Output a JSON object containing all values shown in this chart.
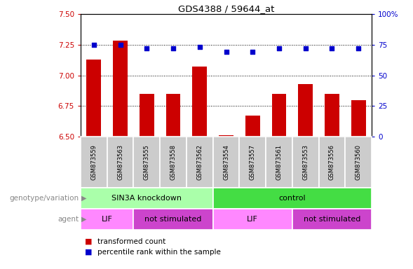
{
  "title": "GDS4388 / 59644_at",
  "samples": [
    "GSM873559",
    "GSM873563",
    "GSM873555",
    "GSM873558",
    "GSM873562",
    "GSM873554",
    "GSM873557",
    "GSM873561",
    "GSM873553",
    "GSM873556",
    "GSM873560"
  ],
  "bar_values": [
    7.13,
    7.28,
    6.85,
    6.85,
    7.07,
    6.51,
    6.67,
    6.85,
    6.93,
    6.85,
    6.8
  ],
  "dot_values": [
    75,
    75,
    72,
    72,
    73,
    69,
    69,
    72,
    72,
    72,
    72
  ],
  "ylim_left": [
    6.5,
    7.5
  ],
  "ylim_right": [
    0,
    100
  ],
  "yticks_left": [
    6.5,
    6.75,
    7.0,
    7.25,
    7.5
  ],
  "yticks_right": [
    0,
    25,
    50,
    75,
    100
  ],
  "bar_color": "#cc0000",
  "dot_color": "#0000cc",
  "bar_width": 0.55,
  "groups": [
    {
      "label": "SIN3A knockdown",
      "start": 0,
      "end": 4,
      "color": "#aaffaa"
    },
    {
      "label": "control",
      "start": 5,
      "end": 10,
      "color": "#44dd44"
    }
  ],
  "agents": [
    {
      "label": "LIF",
      "start": 0,
      "end": 1,
      "color": "#ff88ff"
    },
    {
      "label": "not stimulated",
      "start": 2,
      "end": 4,
      "color": "#cc44cc"
    },
    {
      "label": "LIF",
      "start": 5,
      "end": 7,
      "color": "#ff88ff"
    },
    {
      "label": "not stimulated",
      "start": 8,
      "end": 10,
      "color": "#cc44cc"
    }
  ],
  "legend_bar_label": "transformed count",
  "legend_dot_label": "percentile rank within the sample",
  "label_genotype": "genotype/variation",
  "label_agent": "agent",
  "sample_bg_color": "#cccccc",
  "label_color": "#888888"
}
